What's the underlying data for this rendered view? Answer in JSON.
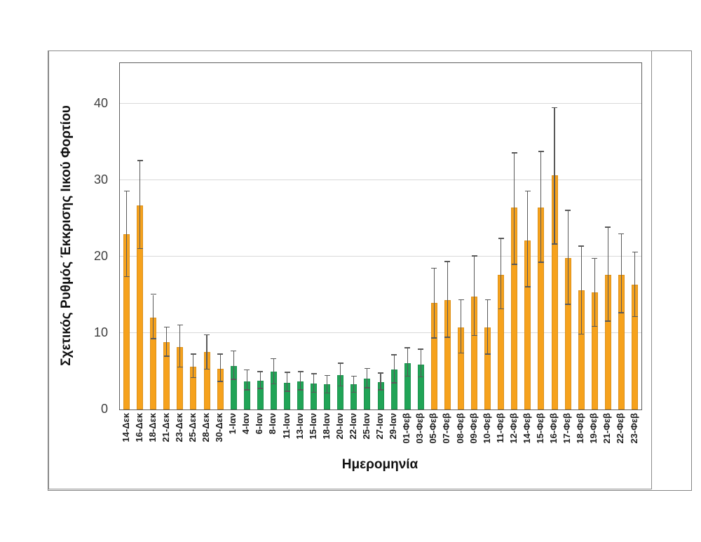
{
  "chart_data": {
    "type": "bar",
    "title": "",
    "xlabel": "Ημερομηνία",
    "ylabel": "Σχετικός Ρυθμός Έκκρισης Ιικού Φορτίου",
    "ylim": [
      0,
      45.3
    ],
    "yticks": [
      0,
      10,
      20,
      30,
      40
    ],
    "grid": true,
    "legend": false,
    "error_bars": true,
    "categories": [
      "14-Δεκ",
      "16-Δεκ",
      "18-Δεκ",
      "21-Δεκ",
      "23-Δεκ",
      "25-Δεκ",
      "28-Δεκ",
      "30-Δεκ",
      "1-Ιαν",
      "4-Ιαν",
      "6-Ιαν",
      "8-Ιαν",
      "11-Ιαν",
      "13-Ιαν",
      "15-Ιαν",
      "18-Ιαν",
      "20-Ιαν",
      "22-Ιαν",
      "25-Ιαν",
      "27-Ιαν",
      "29-Ιαν",
      "01-Φεβ",
      "03-Φεβ",
      "05-Φεβ",
      "07-Φεβ",
      "08-Φεβ",
      "09-Φεβ",
      "10-Φεβ",
      "11-Φεβ",
      "12-Φεβ",
      "14-Φεβ",
      "15-Φεβ",
      "16-Φεβ",
      "17-Φεβ",
      "18-Φεβ",
      "19-Φεβ",
      "21-Φεβ",
      "22-Φεβ",
      "23-Φεβ"
    ],
    "values": [
      22.9,
      26.7,
      12.0,
      8.8,
      8.2,
      5.6,
      7.5,
      5.3,
      5.7,
      3.7,
      3.8,
      5.0,
      3.5,
      3.7,
      3.4,
      3.3,
      4.5,
      3.3,
      4.0,
      3.6,
      5.2,
      6.1,
      5.9,
      13.9,
      14.3,
      10.7,
      14.8,
      10.7,
      17.6,
      26.4,
      22.1,
      26.4,
      30.6,
      19.8,
      15.6,
      15.3,
      17.6,
      17.6,
      16.3
    ],
    "error_low": [
      17.3,
      21.0,
      9.2,
      6.9,
      5.5,
      4.1,
      5.2,
      3.6,
      3.9,
      2.5,
      2.7,
      3.3,
      2.3,
      2.5,
      2.2,
      2.1,
      3.0,
      2.2,
      2.8,
      2.5,
      3.4,
      4.3,
      4.2,
      9.3,
      9.4,
      7.3,
      9.6,
      7.2,
      13.1,
      18.9,
      16.0,
      19.2,
      21.6,
      13.7,
      9.8,
      10.8,
      11.5,
      12.6,
      12.1
    ],
    "error_high": [
      28.5,
      32.5,
      15.0,
      10.7,
      11.0,
      7.2,
      9.7,
      7.2,
      7.6,
      5.1,
      4.9,
      6.6,
      4.8,
      4.9,
      4.6,
      4.4,
      6.0,
      4.3,
      5.3,
      4.7,
      7.1,
      8.0,
      7.8,
      18.4,
      19.3,
      14.3,
      20.0,
      14.3,
      22.3,
      33.5,
      28.5,
      33.7,
      39.4,
      26.0,
      21.3,
      19.7,
      23.8,
      22.9,
      20.5
    ],
    "bar_groups": [
      "orange",
      "orange",
      "orange",
      "orange",
      "orange",
      "orange",
      "orange",
      "orange",
      "green",
      "green",
      "green",
      "green",
      "green",
      "green",
      "green",
      "green",
      "green",
      "green",
      "green",
      "green",
      "green",
      "green",
      "green",
      "orange",
      "orange",
      "orange",
      "orange",
      "orange",
      "orange",
      "orange",
      "orange",
      "orange",
      "orange",
      "orange",
      "orange",
      "orange",
      "orange",
      "orange",
      "orange"
    ],
    "palette": {
      "orange": "#F6A21D",
      "green": "#21A457"
    },
    "error_bar_color": "#595959",
    "gridline_color": "#d9d9d9",
    "plot_border_color": "#5f5f5f"
  }
}
